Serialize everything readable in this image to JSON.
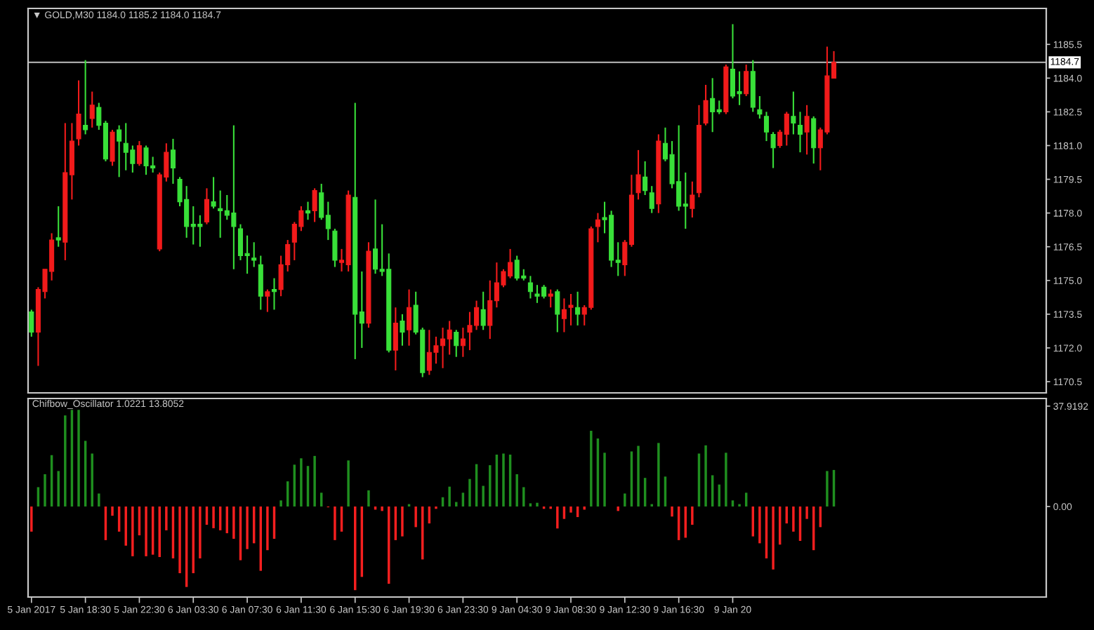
{
  "chart_data": [
    {
      "type": "candlestick",
      "title": "▼ GOLD,M30 1184.0 1185.2 1184.0 1184.7",
      "tick_labels": "y",
      "categories": [
        null,
        null,
        null,
        null,
        null,
        null,
        null,
        null,
        null,
        null,
        null,
        null,
        null,
        null,
        null,
        null,
        null,
        null,
        null,
        null,
        null,
        null,
        null,
        null,
        null,
        null,
        null,
        null,
        null,
        null,
        null,
        null,
        null,
        null,
        null,
        null,
        null,
        null,
        null,
        null,
        null,
        null,
        null,
        null,
        null,
        null,
        null,
        null,
        null,
        null,
        null,
        null,
        null,
        null,
        null,
        null,
        null,
        null,
        null,
        null,
        null,
        null,
        null,
        null,
        null,
        null,
        null,
        null,
        null,
        null,
        null,
        null,
        null,
        null,
        null,
        null,
        null,
        null,
        null,
        null,
        null,
        null,
        null,
        null,
        null,
        null,
        null,
        null,
        null,
        null,
        null,
        null,
        null,
        null,
        null,
        null,
        null,
        null,
        null,
        null,
        null,
        null,
        null,
        null,
        null,
        null,
        null,
        null,
        null,
        null,
        null,
        null,
        null,
        null,
        null,
        null,
        null,
        null,
        null,
        null,
        null,
        null,
        null,
        null,
        null,
        null,
        null,
        null,
        null,
        null,
        null,
        null,
        null,
        null,
        null,
        null,
        null,
        null,
        null,
        null,
        null,
        null,
        null,
        null,
        null,
        null,
        null,
        null,
        null,
        null,
        null
      ],
      "ohlc": [
        [
          1173.6,
          1173.7,
          1172.5,
          1172.7
        ],
        [
          1172.7,
          1174.7,
          1171.2,
          1174.6
        ],
        [
          1174.5,
          1175.5,
          1174.2,
          1175.5
        ],
        [
          1175.4,
          1177.1,
          1175.0,
          1176.8
        ],
        [
          1176.9,
          1178.3,
          1176.5,
          1176.8
        ],
        [
          1176.7,
          1182.0,
          1175.9,
          1179.8
        ],
        [
          1179.7,
          1182.0,
          1178.6,
          1181.2
        ],
        [
          1181.3,
          1183.9,
          1181.0,
          1182.4
        ],
        [
          1181.9,
          1184.8,
          1181.5,
          1181.7
        ],
        [
          1182.2,
          1183.4,
          1181.8,
          1182.8
        ],
        [
          1182.7,
          1182.9,
          1181.7,
          1181.9
        ],
        [
          1182.0,
          1182.1,
          1180.3,
          1180.4
        ],
        [
          1180.3,
          1181.7,
          1180.1,
          1181.6
        ],
        [
          1181.7,
          1181.9,
          1179.6,
          1181.2
        ],
        [
          1181.1,
          1182.0,
          1179.9,
          1180.7
        ],
        [
          1180.8,
          1181.0,
          1179.8,
          1180.2
        ],
        [
          1180.2,
          1181.2,
          1180.1,
          1181.0
        ],
        [
          1180.9,
          1181.0,
          1179.7,
          1180.1
        ],
        [
          1180.1,
          1180.5,
          1179.8,
          1180.0
        ],
        [
          1176.4,
          1179.8,
          1176.3,
          1179.7
        ],
        [
          1179.6,
          1181.1,
          1179.4,
          1180.7
        ],
        [
          1180.8,
          1181.3,
          1179.3,
          1180.0
        ],
        [
          1179.5,
          1179.6,
          1178.3,
          1178.5
        ],
        [
          1178.6,
          1179.2,
          1176.9,
          1177.4
        ],
        [
          1177.5,
          1178.3,
          1176.6,
          1177.4
        ],
        [
          1177.5,
          1177.9,
          1176.5,
          1177.4
        ],
        [
          1177.6,
          1179.1,
          1177.5,
          1178.6
        ],
        [
          1178.5,
          1179.6,
          1178.2,
          1178.3
        ],
        [
          1178.2,
          1179.0,
          1176.9,
          1178.1
        ],
        [
          1178.1,
          1178.8,
          1177.7,
          1177.9
        ],
        [
          1178.0,
          1181.9,
          1175.5,
          1177.4
        ],
        [
          1177.3,
          1177.5,
          1175.9,
          1176.1
        ],
        [
          1176.2,
          1177.0,
          1175.3,
          1176.1
        ],
        [
          1176.0,
          1176.7,
          1175.6,
          1175.9
        ],
        [
          1175.7,
          1176.1,
          1173.7,
          1174.3
        ],
        [
          1174.3,
          1174.6,
          1173.6,
          1174.5
        ],
        [
          1174.6,
          1175.1,
          1173.7,
          1174.5
        ],
        [
          1174.6,
          1176.1,
          1174.3,
          1175.7
        ],
        [
          1175.7,
          1176.8,
          1175.4,
          1176.6
        ],
        [
          1176.7,
          1177.6,
          1175.9,
          1177.5
        ],
        [
          1177.4,
          1178.3,
          1177.2,
          1178.1
        ],
        [
          1178.1,
          1178.5,
          1177.7,
          1178.0
        ],
        [
          1178.1,
          1179.1,
          1177.6,
          1179.0
        ],
        [
          1178.9,
          1179.3,
          1177.7,
          1177.8
        ],
        [
          1177.9,
          1178.5,
          1176.8,
          1177.3
        ],
        [
          1177.2,
          1177.3,
          1175.6,
          1175.9
        ],
        [
          1175.8,
          1176.4,
          1175.4,
          1175.9
        ],
        [
          1175.7,
          1179.0,
          1175.4,
          1178.8
        ],
        [
          1178.7,
          1182.9,
          1171.5,
          1173.5
        ],
        [
          1173.6,
          1175.4,
          1172.0,
          1173.1
        ],
        [
          1173.1,
          1176.7,
          1172.9,
          1176.3
        ],
        [
          1176.4,
          1178.6,
          1175.3,
          1175.5
        ],
        [
          1175.5,
          1177.5,
          1175.2,
          1175.4
        ],
        [
          1175.5,
          1176.2,
          1171.8,
          1171.9
        ],
        [
          1171.9,
          1173.8,
          1171.0,
          1173.1
        ],
        [
          1173.2,
          1173.5,
          1172.1,
          1172.7
        ],
        [
          1172.8,
          1174.6,
          1172.1,
          1173.8
        ],
        [
          1173.9,
          1174.5,
          1172.6,
          1172.7
        ],
        [
          1172.8,
          1172.9,
          1170.7,
          1170.9
        ],
        [
          1171.0,
          1172.8,
          1170.8,
          1171.8
        ],
        [
          1171.8,
          1172.5,
          1171.3,
          1172.1
        ],
        [
          1172.1,
          1172.9,
          1171.1,
          1172.4
        ],
        [
          1172.4,
          1173.2,
          1171.7,
          1172.8
        ],
        [
          1172.7,
          1172.8,
          1171.6,
          1172.1
        ],
        [
          1172.1,
          1172.9,
          1171.6,
          1172.4
        ],
        [
          1172.7,
          1173.6,
          1171.9,
          1173.0
        ],
        [
          1173.0,
          1174.1,
          1172.8,
          1173.8
        ],
        [
          1173.7,
          1174.5,
          1172.8,
          1173.0
        ],
        [
          1173.0,
          1175.0,
          1172.4,
          1174.1
        ],
        [
          1174.1,
          1175.8,
          1173.8,
          1174.9
        ],
        [
          1174.8,
          1175.5,
          1174.7,
          1175.4
        ],
        [
          1175.2,
          1176.4,
          1175.1,
          1175.8
        ],
        [
          1175.9,
          1176.1,
          1175.0,
          1175.1
        ],
        [
          1175.2,
          1175.5,
          1175.0,
          1175.1
        ],
        [
          1174.9,
          1175.2,
          1174.2,
          1174.5
        ],
        [
          1174.4,
          1174.8,
          1174.0,
          1174.3
        ],
        [
          1174.7,
          1174.8,
          1174.2,
          1174.3
        ],
        [
          1174.3,
          1174.6,
          1173.8,
          1174.4
        ],
        [
          1174.5,
          1174.6,
          1172.7,
          1173.5
        ],
        [
          1173.3,
          1174.2,
          1172.7,
          1173.7
        ],
        [
          1173.8,
          1174.4,
          1173.0,
          1173.9
        ],
        [
          1173.8,
          1174.5,
          1173.0,
          1173.5
        ],
        [
          1173.5,
          1173.9,
          1173.0,
          1173.8
        ],
        [
          1173.8,
          1177.4,
          1173.7,
          1177.3
        ],
        [
          1177.4,
          1178.0,
          1176.7,
          1177.7
        ],
        [
          1177.8,
          1178.5,
          1177.1,
          1177.7
        ],
        [
          1177.9,
          1178.1,
          1175.6,
          1175.9
        ],
        [
          1175.9,
          1176.7,
          1175.2,
          1175.8
        ],
        [
          1175.7,
          1176.8,
          1175.2,
          1176.7
        ],
        [
          1176.6,
          1179.7,
          1176.5,
          1178.8
        ],
        [
          1178.9,
          1180.8,
          1178.6,
          1179.7
        ],
        [
          1179.6,
          1180.3,
          1178.8,
          1179.0
        ],
        [
          1178.9,
          1179.2,
          1178.0,
          1178.2
        ],
        [
          1178.4,
          1181.5,
          1178.0,
          1181.2
        ],
        [
          1181.1,
          1181.8,
          1180.3,
          1180.4
        ],
        [
          1180.6,
          1181.2,
          1179.1,
          1179.3
        ],
        [
          1179.4,
          1181.9,
          1178.1,
          1178.3
        ],
        [
          1178.4,
          1179.8,
          1177.3,
          1178.3
        ],
        [
          1178.2,
          1179.4,
          1177.8,
          1178.8
        ],
        [
          1178.9,
          1182.8,
          1178.7,
          1181.9
        ],
        [
          1182.0,
          1183.7,
          1181.9,
          1183.0
        ],
        [
          1183.1,
          1184.0,
          1181.6,
          1182.5
        ],
        [
          1182.6,
          1183.0,
          1182.4,
          1182.5
        ],
        [
          1182.5,
          1184.6,
          1182.4,
          1184.5
        ],
        [
          1184.4,
          1186.4,
          1183.1,
          1183.2
        ],
        [
          1183.4,
          1184.3,
          1182.8,
          1183.3
        ],
        [
          1183.3,
          1184.6,
          1183.2,
          1184.3
        ],
        [
          1184.3,
          1184.8,
          1182.5,
          1182.7
        ],
        [
          1182.6,
          1183.2,
          1182.2,
          1182.4
        ],
        [
          1182.3,
          1182.5,
          1181.2,
          1181.6
        ],
        [
          1181.5,
          1181.6,
          1180.0,
          1180.9
        ],
        [
          1181.0,
          1181.7,
          1180.9,
          1181.6
        ],
        [
          1181.5,
          1182.5,
          1181.0,
          1182.4
        ],
        [
          1182.3,
          1183.4,
          1181.5,
          1182.0
        ],
        [
          1181.9,
          1182.5,
          1180.7,
          1181.5
        ],
        [
          1181.6,
          1182.8,
          1180.6,
          1182.3
        ],
        [
          1182.2,
          1182.3,
          1180.2,
          1180.9
        ],
        [
          1180.9,
          1181.8,
          1179.9,
          1181.7
        ],
        [
          1181.6,
          1185.4,
          1181.5,
          1184.1
        ],
        [
          1184.0,
          1185.2,
          1184.0,
          1184.7
        ],
        null,
        null,
        null,
        null,
        null,
        null,
        null,
        null,
        null,
        null,
        null,
        null,
        null,
        null,
        null,
        null,
        null,
        null,
        null,
        null,
        null,
        null,
        null,
        null,
        null,
        null,
        null,
        null,
        null,
        null,
        null
      ],
      "colors": [
        "#39e039",
        "#f21b1b",
        "#f21b1b",
        "#f21b1b",
        "#39e039",
        "#f21b1b",
        "#f21b1b",
        "#f21b1b",
        "#39e039",
        "#f21b1b",
        "#39e039",
        "#39e039",
        "#f21b1b",
        "#39e039",
        "#39e039",
        "#39e039",
        "#f21b1b",
        "#39e039",
        "#39e039",
        "#f21b1b",
        "#f21b1b",
        "#39e039",
        "#39e039",
        "#39e039",
        "#39e039",
        "#39e039",
        "#f21b1b",
        "#39e039",
        "#39e039",
        "#39e039",
        "#39e039",
        "#39e039",
        "#39e039",
        "#39e039",
        "#39e039",
        "#f21b1b",
        "#39e039",
        "#f21b1b",
        "#f21b1b",
        "#f21b1b",
        "#f21b1b",
        "#39e039",
        "#f21b1b",
        "#39e039",
        "#39e039",
        "#39e039",
        "#f21b1b",
        "#f21b1b",
        "#39e039",
        "#39e039",
        "#f21b1b",
        "#39e039",
        "#39e039",
        "#39e039",
        "#f21b1b",
        "#39e039",
        "#f21b1b",
        "#39e039",
        "#39e039",
        "#f21b1b",
        "#f21b1b",
        "#f21b1b",
        "#f21b1b",
        "#39e039",
        "#f21b1b",
        "#f21b1b",
        "#f21b1b",
        "#39e039",
        "#f21b1b",
        "#f21b1b",
        "#f21b1b",
        "#f21b1b",
        "#39e039",
        "#39e039",
        "#39e039",
        "#39e039",
        "#39e039",
        "#f21b1b",
        "#39e039",
        "#f21b1b",
        "#f21b1b",
        "#39e039",
        "#f21b1b",
        "#f21b1b",
        "#f21b1b",
        "#39e039",
        "#39e039",
        "#39e039",
        "#f21b1b",
        "#f21b1b",
        "#f21b1b",
        "#39e039",
        "#39e039",
        "#f21b1b",
        "#39e039",
        "#39e039",
        "#39e039",
        "#39e039",
        "#f21b1b",
        "#f21b1b",
        "#f21b1b",
        "#39e039",
        "#39e039",
        "#f21b1b",
        "#39e039",
        "#39e039",
        "#f21b1b",
        "#39e039",
        "#39e039",
        "#39e039",
        "#39e039",
        "#f21b1b",
        "#f21b1b",
        "#39e039",
        "#39e039",
        "#f21b1b",
        "#39e039",
        "#f21b1b",
        "#f21b1b",
        "#f21b1b",
        null,
        null,
        null,
        null,
        null,
        null,
        null,
        null,
        null,
        null,
        null,
        null,
        null,
        null,
        null,
        null,
        null,
        null,
        null,
        null,
        null,
        null,
        null,
        null,
        null,
        null,
        null,
        null,
        null,
        null,
        null
      ],
      "ylim": [
        1170.0,
        1187.1
      ],
      "yticks": [
        1185.5,
        {
          "value": 1184,
          "label": "1184.0"
        },
        1182.5,
        {
          "value": 1181,
          "label": "1181.0"
        },
        1179.5,
        {
          "value": 1178,
          "label": "1178.0"
        },
        1176.5,
        {
          "value": 1175,
          "label": "1175.0"
        },
        1173.5,
        {
          "value": 1172,
          "label": "1172.0"
        },
        1170.5
      ],
      "ref_lines": [
        {
          "axis": "y",
          "value": 1184.7,
          "label": "1184.7",
          "color": "#a8a8a8"
        }
      ]
    },
    {
      "type": "bar",
      "title": "Chifbow_Oscillator 1.0221 13.8052",
      "categories": [
        "5 Jan 2017",
        null,
        null,
        null,
        null,
        null,
        null,
        null,
        "5 Jan 18:30",
        null,
        null,
        null,
        null,
        null,
        null,
        null,
        "5 Jan 22:30",
        null,
        null,
        null,
        null,
        null,
        null,
        null,
        "6 Jan 03:30",
        null,
        null,
        null,
        null,
        null,
        null,
        null,
        "6 Jan 07:30",
        null,
        null,
        null,
        null,
        null,
        null,
        null,
        "6 Jan 11:30",
        null,
        null,
        null,
        null,
        null,
        null,
        null,
        "6 Jan 15:30",
        null,
        null,
        null,
        null,
        null,
        null,
        null,
        "6 Jan 19:30",
        null,
        null,
        null,
        null,
        null,
        null,
        null,
        "6 Jan 23:30",
        null,
        null,
        null,
        null,
        null,
        null,
        null,
        "9 Jan 04:30",
        null,
        null,
        null,
        null,
        null,
        null,
        null,
        "9 Jan 08:30",
        null,
        null,
        null,
        null,
        null,
        null,
        null,
        "9 Jan 12:30",
        null,
        null,
        null,
        null,
        null,
        null,
        null,
        "9 Jan 16:30",
        null,
        null,
        null,
        null,
        null,
        null,
        null,
        "9 Jan 20",
        null,
        null,
        null,
        null,
        null,
        null,
        null,
        null,
        null,
        null,
        null,
        null,
        null,
        null,
        null,
        null,
        null,
        null,
        null,
        null,
        null,
        null,
        null,
        null,
        null,
        null,
        null,
        null,
        null,
        null,
        null,
        null,
        null,
        null,
        null,
        null,
        null,
        null,
        null,
        null,
        null,
        null,
        null,
        null,
        null,
        null
      ],
      "values": [
        -9.5,
        7.3,
        12.2,
        19.4,
        13.4,
        34.4,
        36.5,
        36.5,
        24.8,
        20.0,
        4.9,
        -12.7,
        -3.5,
        -9.5,
        -14.8,
        -18.8,
        -10.9,
        -18.8,
        -18.2,
        -19.1,
        -9.0,
        -19.6,
        -25.2,
        -30.4,
        -25.2,
        -19.6,
        -6.9,
        -8.2,
        -9.0,
        -10.1,
        -12.2,
        -20.3,
        -16.1,
        -13.9,
        -24.3,
        -16.5,
        -12.2,
        2.3,
        9.5,
        15.8,
        18.2,
        15.3,
        19.1,
        5.2,
        -0.3,
        -12.7,
        -9.5,
        17.4,
        -31.6,
        -26.6,
        6.1,
        -1.2,
        -1.7,
        -29.2,
        -12.7,
        -11.3,
        0.9,
        -7.8,
        -20.0,
        -6.4,
        -0.9,
        3.5,
        7.5,
        1.7,
        5.2,
        10.4,
        16.0,
        7.8,
        15.6,
        19.6,
        20.0,
        19.6,
        12.2,
        7.3,
        1.2,
        1.4,
        -0.9,
        -0.9,
        -8.3,
        -4.7,
        -2.3,
        -4.0,
        -1.2,
        28.6,
        25.7,
        20.3,
        null,
        -1.7,
        4.9,
        20.8,
        22.9,
        10.8,
        0.9,
        24.0,
        11.3,
        -3.8,
        -12.7,
        -11.8,
        -6.9,
        20.0,
        23.1,
        11.8,
        8.3,
        20.3,
        2.3,
        0.9,
        5.2,
        -11.3,
        -13.9,
        -19.6,
        -23.8,
        -14.4,
        -6.4,
        -9.5,
        -13.0,
        -4.7,
        -16.5,
        -7.8,
        13.4,
        13.8,
        null,
        null,
        null,
        null,
        null,
        null,
        null,
        null,
        null,
        null,
        null,
        null,
        null,
        null,
        null,
        null,
        null,
        null,
        null,
        null,
        null,
        null,
        null,
        null,
        null,
        null,
        null,
        null,
        null,
        null,
        null
      ],
      "colors": [
        "#f51f1f",
        "#1f8f1f",
        "#1f8f1f",
        "#1f8f1f",
        "#1f8f1f",
        "#1f8f1f",
        "#1f8f1f",
        "#1f8f1f",
        "#1f8f1f",
        "#1f8f1f",
        "#1f8f1f",
        "#f51f1f",
        "#f51f1f",
        "#f51f1f",
        "#f51f1f",
        "#f51f1f",
        "#f51f1f",
        "#f51f1f",
        "#f51f1f",
        "#f51f1f",
        "#f51f1f",
        "#f51f1f",
        "#f51f1f",
        "#f51f1f",
        "#f51f1f",
        "#f51f1f",
        "#f51f1f",
        "#f51f1f",
        "#f51f1f",
        "#f51f1f",
        "#f51f1f",
        "#f51f1f",
        "#f51f1f",
        "#f51f1f",
        "#f51f1f",
        "#f51f1f",
        "#f51f1f",
        "#1f8f1f",
        "#1f8f1f",
        "#1f8f1f",
        "#1f8f1f",
        "#1f8f1f",
        "#1f8f1f",
        "#1f8f1f",
        "#f51f1f",
        "#f51f1f",
        "#f51f1f",
        "#1f8f1f",
        "#f51f1f",
        "#f51f1f",
        "#1f8f1f",
        "#f51f1f",
        "#f51f1f",
        "#f51f1f",
        "#f51f1f",
        "#f51f1f",
        "#1f8f1f",
        "#f51f1f",
        "#f51f1f",
        "#f51f1f",
        "#f51f1f",
        "#1f8f1f",
        "#1f8f1f",
        "#1f8f1f",
        "#1f8f1f",
        "#1f8f1f",
        "#1f8f1f",
        "#1f8f1f",
        "#1f8f1f",
        "#1f8f1f",
        "#1f8f1f",
        "#1f8f1f",
        "#1f8f1f",
        "#1f8f1f",
        "#1f8f1f",
        "#1f8f1f",
        "#f51f1f",
        "#f51f1f",
        "#f51f1f",
        "#f51f1f",
        "#f51f1f",
        "#f51f1f",
        "#f51f1f",
        "#1f8f1f",
        "#1f8f1f",
        "#1f8f1f",
        "#1f8f1f",
        "#f51f1f",
        "#1f8f1f",
        "#1f8f1f",
        "#1f8f1f",
        "#1f8f1f",
        "#1f8f1f",
        "#1f8f1f",
        "#1f8f1f",
        "#f51f1f",
        "#f51f1f",
        "#f51f1f",
        "#f51f1f",
        "#1f8f1f",
        "#1f8f1f",
        "#1f8f1f",
        "#1f8f1f",
        "#1f8f1f",
        "#1f8f1f",
        "#1f8f1f",
        "#1f8f1f",
        "#f51f1f",
        "#f51f1f",
        "#f51f1f",
        "#f51f1f",
        "#f51f1f",
        "#f51f1f",
        "#f51f1f",
        "#f51f1f",
        "#f51f1f",
        "#f51f1f",
        "#f51f1f",
        "#1f8f1f",
        "#1f8f1f",
        null,
        null,
        null,
        null,
        null,
        null,
        null,
        null,
        null,
        null,
        null,
        null,
        null,
        null,
        null,
        null,
        null,
        null,
        null,
        null,
        null,
        null,
        null,
        null,
        null,
        null,
        null,
        null,
        null,
        null,
        null
      ],
      "ylim": [
        -34.2,
        40.8
      ],
      "yticks": [
        37.9192,
        {
          "value": 0,
          "label": "0.00"
        }
      ]
    }
  ]
}
